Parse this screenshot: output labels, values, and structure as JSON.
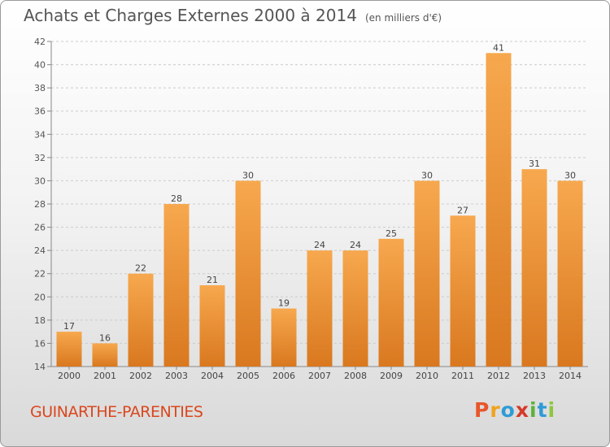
{
  "header": {
    "title": "Achats et Charges Externes 2000 à 2014",
    "unit": "(en milliers d'€)"
  },
  "footer": {
    "commune": "GUINARTHE-PARENTIES",
    "logo_letters": [
      "P",
      "r",
      "o",
      "x",
      "i",
      "t",
      "i"
    ],
    "logo_colors": [
      "#e8562a",
      "#f0a31c",
      "#2e9bd6",
      "#d63a2a",
      "#5bb23a",
      "#2e9bd6",
      "#8dc63f"
    ]
  },
  "colors": {
    "bar_light": "#f7a84e",
    "bar_dark": "#d9781f",
    "commune_text": "#d9481e",
    "grid": "#cccccc"
  },
  "chart_data": {
    "type": "bar",
    "title": "Achats et Charges Externes 2000 à 2014",
    "subtitle": "(en milliers d'€)",
    "categories": [
      "2000",
      "2001",
      "2002",
      "2003",
      "2004",
      "2005",
      "2006",
      "2007",
      "2008",
      "2009",
      "2010",
      "2011",
      "2012",
      "2013",
      "2014"
    ],
    "values": [
      17,
      16,
      22,
      28,
      21,
      30,
      19,
      24,
      24,
      25,
      30,
      27,
      41,
      31,
      30
    ],
    "ylim": [
      14,
      42
    ],
    "yticks": [
      14,
      16,
      18,
      20,
      22,
      24,
      26,
      28,
      30,
      32,
      34,
      36,
      38,
      40,
      42
    ],
    "grid": "horizontal dashed",
    "data_labels": true
  }
}
